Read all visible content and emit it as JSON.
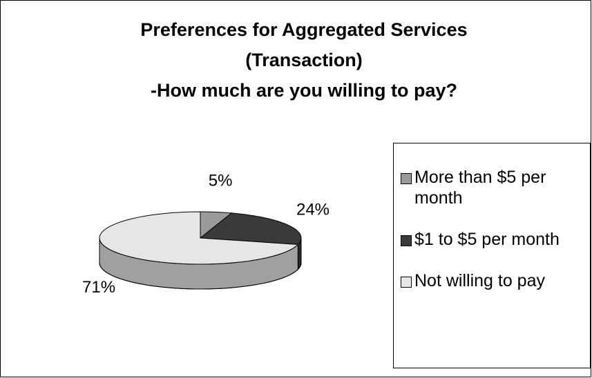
{
  "chart_data": {
    "type": "pie",
    "title": [
      "Preferences for Aggregated Services",
      "(Transaction)",
      "-How much are you willing to pay?"
    ],
    "categories": [
      "More than $5 per month",
      "$1 to $5 per month",
      "Not willing to pay"
    ],
    "values": [
      5,
      24,
      71
    ],
    "value_labels": [
      "5%",
      "24%",
      "71%"
    ],
    "colors": [
      "#9a9a9a",
      "#3a3a3a",
      "#e6e6e6"
    ],
    "legend": "right"
  }
}
